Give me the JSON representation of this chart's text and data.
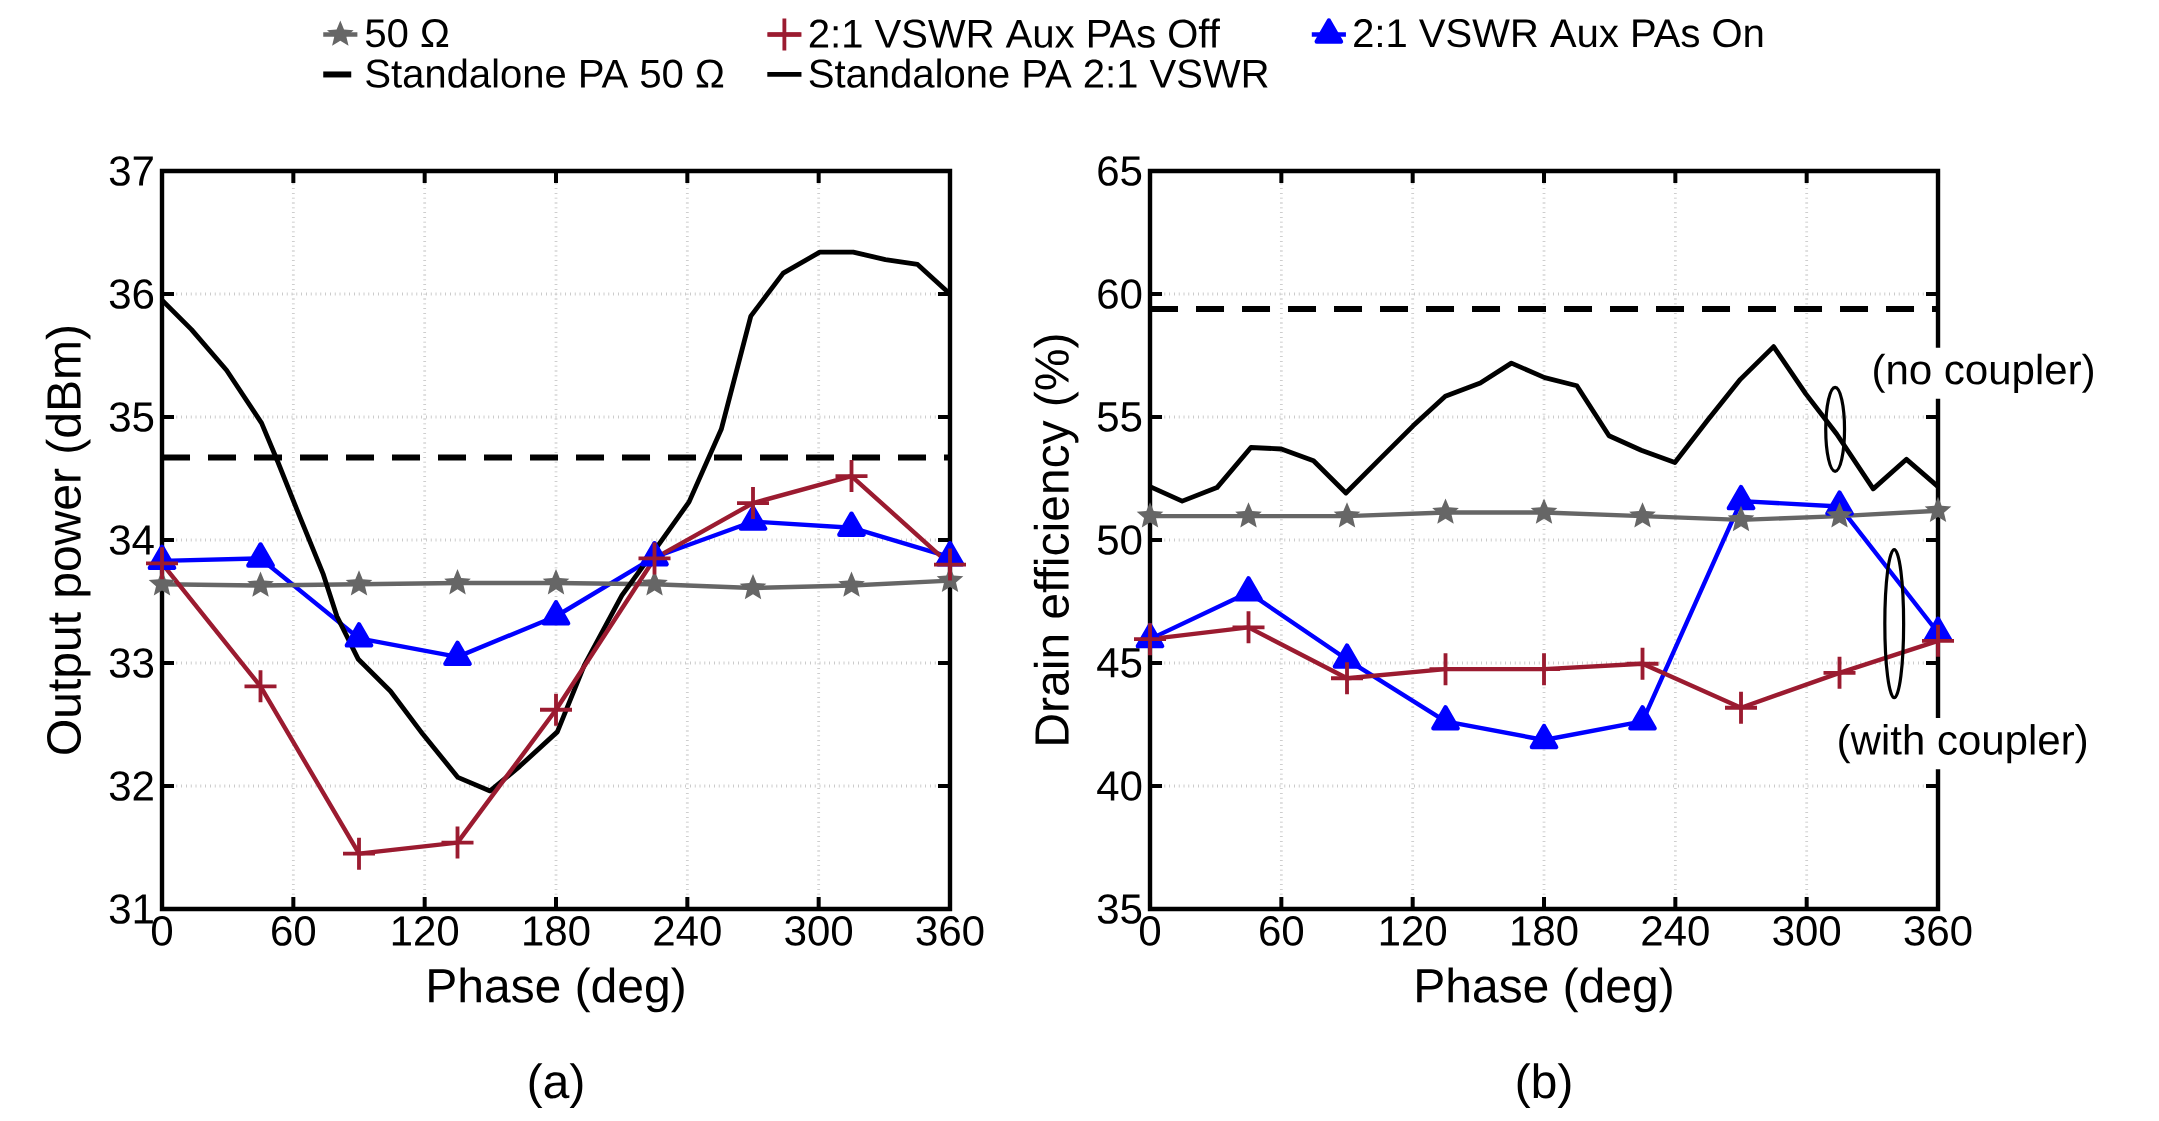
{
  "chart_data": [
    {
      "type": "line",
      "title": "(a)",
      "xlabel": "Phase (deg)",
      "ylabel": "Output power (dBm)",
      "xlim": [
        0,
        360
      ],
      "ylim": [
        31,
        37
      ],
      "xticks": [
        0,
        60,
        120,
        180,
        240,
        300,
        360
      ],
      "yticks": [
        31,
        32,
        33,
        34,
        35,
        36,
        37
      ],
      "grid": true,
      "legend": "top",
      "x": [
        0,
        45,
        90,
        135,
        180,
        225,
        270,
        315,
        360
      ],
      "series": [
        {
          "name": "50 Ω",
          "color": "#666666",
          "marker": "star",
          "values": [
            33.64,
            33.63,
            33.64,
            33.65,
            33.65,
            33.64,
            33.61,
            33.63,
            33.67
          ]
        },
        {
          "name": "2:1 VSWR Aux PAs Off",
          "color": "#9b1b30",
          "marker": "cross",
          "values": [
            33.81,
            32.81,
            31.45,
            31.54,
            32.62,
            33.85,
            34.3,
            34.52,
            33.8
          ]
        },
        {
          "name": "2:1 VSWR Aux PAs On",
          "color": "#0000ff",
          "marker": "triangle",
          "values": [
            33.83,
            33.85,
            33.2,
            33.05,
            33.38,
            33.86,
            34.15,
            34.1,
            33.86
          ]
        },
        {
          "name": "Standalone PA 50 Ω",
          "color": "#000000",
          "marker": "none",
          "line_style": "dashed",
          "x": [
            0,
            360
          ],
          "values": [
            34.67,
            34.67
          ]
        },
        {
          "name": "Standalone PA 2:1 VSWR",
          "color": "#000000",
          "marker": "none",
          "line_style": "solid",
          "x": [
            0,
            13.5,
            29.5,
            45.5,
            52.8,
            62.7,
            73.7,
            79.9,
            89.7,
            104.4,
            119.2,
            135.2,
            149.9,
            163.4,
            180.6,
            192.9,
            210.1,
            226,
            240.8,
            255.5,
            269,
            283.8,
            300.5,
            315.8,
            330.5,
            345.2,
            360
          ],
          "values": [
            35.95,
            35.71,
            35.38,
            34.95,
            34.64,
            34.2,
            33.72,
            33.38,
            33.03,
            32.77,
            32.42,
            32.07,
            31.96,
            32.16,
            32.44,
            32.98,
            33.55,
            33.94,
            34.31,
            34.9,
            35.82,
            36.17,
            36.34,
            36.34,
            36.28,
            36.24,
            36.0
          ]
        }
      ]
    },
    {
      "type": "line",
      "title": "(b)",
      "xlabel": "Phase (deg)",
      "ylabel": "Drain efficiency (%)",
      "xlim": [
        0,
        360
      ],
      "ylim": [
        35,
        65
      ],
      "xticks": [
        0,
        60,
        120,
        180,
        240,
        300,
        360
      ],
      "yticks": [
        35,
        40,
        45,
        50,
        55,
        60,
        65
      ],
      "grid": true,
      "x": [
        0,
        45,
        90,
        135,
        180,
        225,
        270,
        315,
        360
      ],
      "annotations": [
        {
          "text": "(no coupler)",
          "x": 313,
          "y": 54.5
        },
        "(with coupler)"
      ],
      "series": [
        {
          "color": "#666666",
          "marker": "star",
          "values": [
            50.97,
            50.97,
            50.97,
            51.12,
            51.12,
            50.97,
            50.82,
            50.97,
            51.19
          ]
        },
        {
          "color": "#9b1b30",
          "marker": "cross",
          "values": [
            45.97,
            46.45,
            44.38,
            44.75,
            44.75,
            44.97,
            43.18,
            44.6,
            45.9
          ]
        },
        {
          "color": "#0000ff",
          "marker": "triangle",
          "values": [
            45.97,
            47.87,
            45.14,
            42.63,
            41.87,
            42.63,
            51.58,
            51.36,
            46.23
          ]
        },
        {
          "color": "#000000",
          "marker": "none",
          "line_style": "dashed",
          "x": [
            0,
            360
          ],
          "values": [
            59.39,
            59.39
          ]
        },
        {
          "color": "#000000",
          "marker": "none",
          "line_style": "solid",
          "x": [
            0,
            14.7,
            30.6,
            46.1,
            60,
            74.7,
            89.5,
            105.4,
            120.2,
            134.9,
            150.9,
            165.1,
            180.3,
            195,
            209.7,
            224.4,
            239.8,
            255,
            269.7,
            284.9,
            299.6,
            313.7,
            330.4,
            345.6,
            360
          ],
          "values": [
            52.17,
            51.58,
            52.13,
            53.76,
            53.7,
            53.22,
            51.91,
            53.33,
            54.64,
            55.84,
            56.38,
            57.19,
            56.6,
            56.27,
            54.24,
            53.65,
            53.15,
            54.9,
            56.53,
            57.86,
            55.94,
            54.31,
            52.08,
            53.28,
            52.17
          ]
        }
      ]
    }
  ]
}
